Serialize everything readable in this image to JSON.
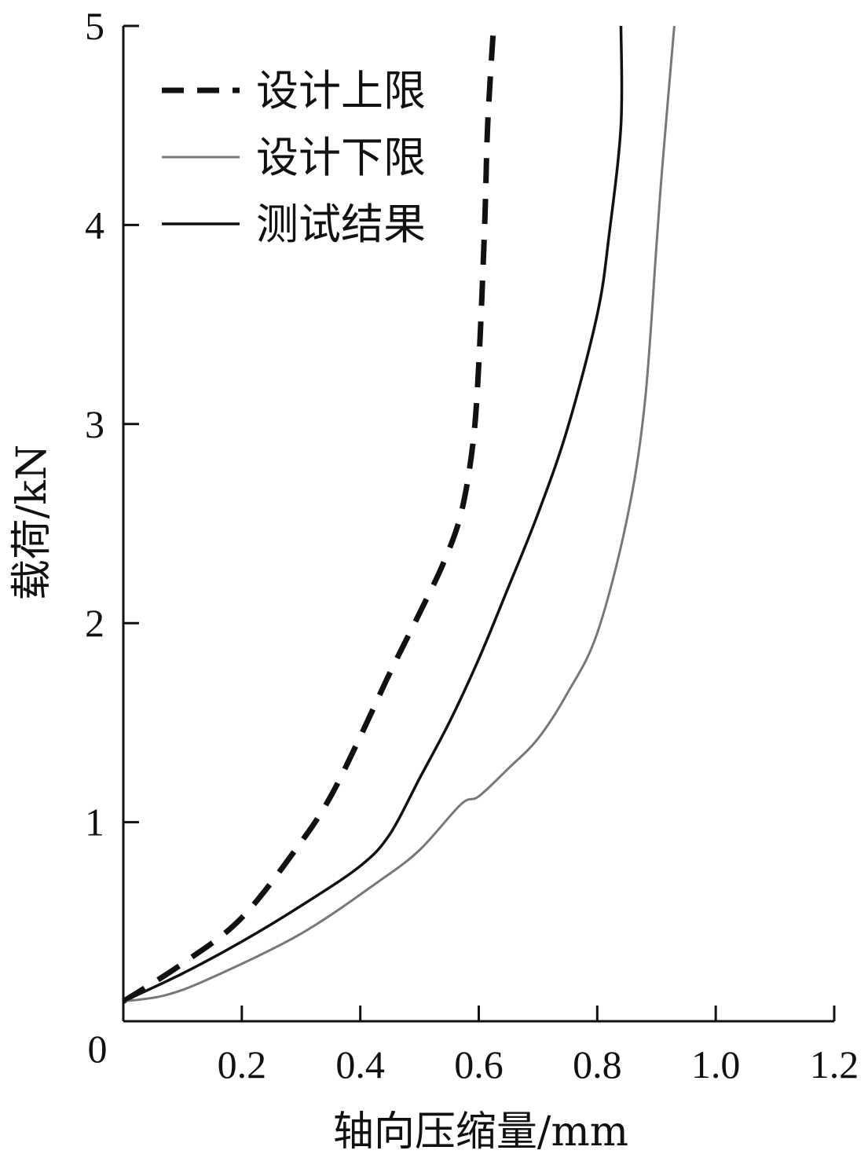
{
  "chart_data": {
    "type": "line",
    "title": "",
    "xlabel": "轴向压缩量/mm",
    "ylabel": "载荷/kN",
    "xlim": [
      0,
      1.2
    ],
    "ylim": [
      0,
      5
    ],
    "x_ticks": [
      0.2,
      0.4,
      0.6,
      0.8,
      1.0,
      1.2
    ],
    "x_tick_labels": [
      "0.2",
      "0.4",
      "0.6",
      "0.8",
      "1.0",
      "1.2"
    ],
    "y_ticks": [
      1,
      2,
      3,
      4,
      5
    ],
    "y_tick_labels": [
      "1",
      "2",
      "3",
      "4",
      "5"
    ],
    "origin_label": "0",
    "grid": false,
    "legend_position": "top-left",
    "series": [
      {
        "name": "设计上限",
        "style": "dashed",
        "color": "#111111",
        "points": [
          [
            0,
            0.1
          ],
          [
            0.1,
            0.29
          ],
          [
            0.2,
            0.52
          ],
          [
            0.3,
            0.9
          ],
          [
            0.35,
            1.13
          ],
          [
            0.4,
            1.43
          ],
          [
            0.45,
            1.75
          ],
          [
            0.5,
            2.05
          ],
          [
            0.54,
            2.3
          ],
          [
            0.57,
            2.55
          ],
          [
            0.59,
            2.9
          ],
          [
            0.6,
            3.3
          ],
          [
            0.61,
            4.0
          ],
          [
            0.615,
            4.5
          ],
          [
            0.625,
            5.0
          ]
        ]
      },
      {
        "name": "设计下限",
        "style": "solid",
        "color": "#7a7677",
        "points": [
          [
            0,
            0.1
          ],
          [
            0.07,
            0.13
          ],
          [
            0.15,
            0.22
          ],
          [
            0.3,
            0.44
          ],
          [
            0.43,
            0.7
          ],
          [
            0.5,
            0.86
          ],
          [
            0.57,
            1.09
          ],
          [
            0.6,
            1.13
          ],
          [
            0.65,
            1.27
          ],
          [
            0.7,
            1.42
          ],
          [
            0.75,
            1.65
          ],
          [
            0.8,
            1.95
          ],
          [
            0.85,
            2.52
          ],
          [
            0.88,
            3.1
          ],
          [
            0.9,
            3.9
          ],
          [
            0.91,
            4.3
          ],
          [
            0.93,
            5.0
          ]
        ]
      },
      {
        "name": "测试结果",
        "style": "solid",
        "color": "#111111",
        "points": [
          [
            0,
            0.1
          ],
          [
            0.1,
            0.24
          ],
          [
            0.2,
            0.4
          ],
          [
            0.3,
            0.58
          ],
          [
            0.4,
            0.78
          ],
          [
            0.45,
            0.94
          ],
          [
            0.5,
            1.22
          ],
          [
            0.55,
            1.5
          ],
          [
            0.6,
            1.82
          ],
          [
            0.65,
            2.18
          ],
          [
            0.7,
            2.55
          ],
          [
            0.75,
            2.98
          ],
          [
            0.8,
            3.55
          ],
          [
            0.82,
            3.95
          ],
          [
            0.84,
            4.5
          ],
          [
            0.84,
            5.0
          ]
        ]
      }
    ]
  }
}
